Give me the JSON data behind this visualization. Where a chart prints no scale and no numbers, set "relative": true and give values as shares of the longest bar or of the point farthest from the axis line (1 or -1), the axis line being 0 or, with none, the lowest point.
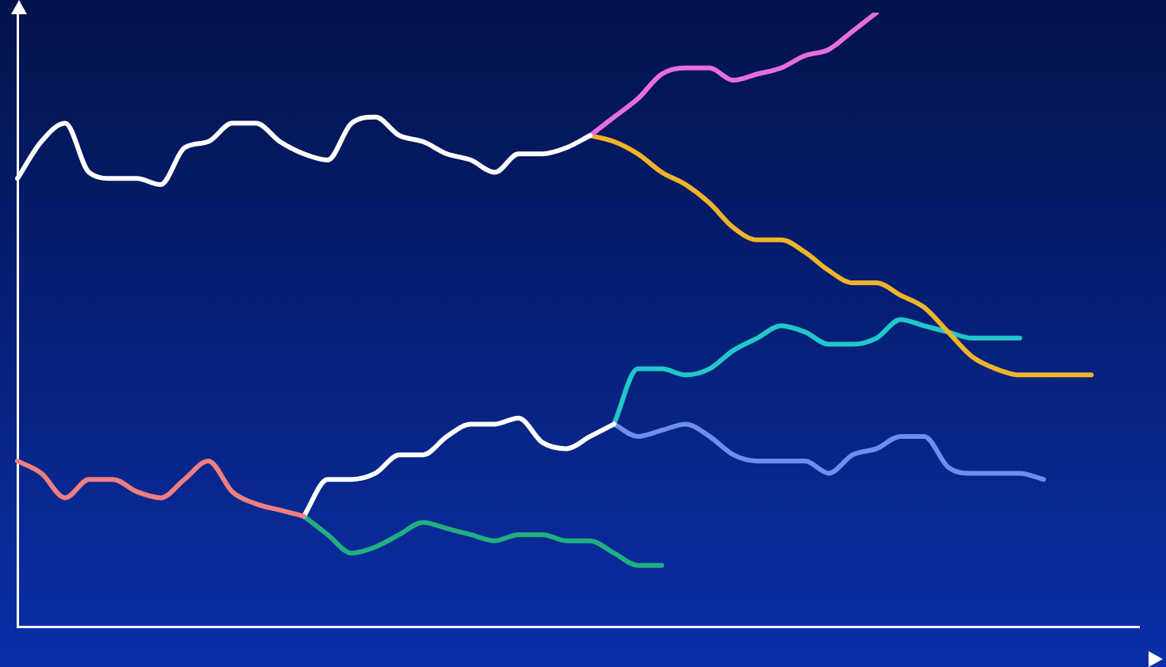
{
  "chart_data": {
    "type": "line",
    "relative": true,
    "grid": false,
    "legend": false,
    "marker": "none",
    "line_style": "solid",
    "categories": [
      null,
      null,
      null,
      null,
      null,
      null,
      null,
      null,
      null,
      null,
      null,
      null,
      null,
      null,
      null,
      null,
      null,
      null,
      null,
      null,
      null,
      null,
      null,
      null,
      null,
      null,
      null,
      null,
      null,
      null,
      null,
      null,
      null,
      null,
      null,
      null,
      null,
      null,
      null,
      null,
      null,
      null,
      null,
      null,
      null,
      null,
      null,
      null
    ],
    "series": [
      {
        "color": "#ffffff",
        "values": [
          0.73,
          0.79,
          0.82,
          0.74,
          0.73,
          0.73,
          0.72,
          0.78,
          0.79,
          0.82,
          0.82,
          0.79,
          0.77,
          0.76,
          0.82,
          0.83,
          0.8,
          0.79,
          0.77,
          0.76,
          0.74,
          0.77,
          0.77,
          0.78,
          0.8,
          null,
          null,
          null,
          null,
          null,
          null,
          null,
          null,
          null,
          null,
          null,
          null,
          null,
          null,
          null,
          null,
          null,
          null,
          null,
          null,
          null,
          null,
          null
        ]
      },
      {
        "color": "#e86ee0",
        "values": [
          null,
          null,
          null,
          null,
          null,
          null,
          null,
          null,
          null,
          null,
          null,
          null,
          null,
          null,
          null,
          null,
          null,
          null,
          null,
          null,
          null,
          null,
          null,
          null,
          0.8,
          0.83,
          0.86,
          0.9,
          0.91,
          0.91,
          0.89,
          0.9,
          0.91,
          0.93,
          0.94,
          0.97,
          1,
          null,
          null,
          null,
          null,
          null,
          null,
          null,
          null,
          null,
          null,
          null
        ]
      },
      {
        "color": "#f0b429",
        "values": [
          null,
          null,
          null,
          null,
          null,
          null,
          null,
          null,
          null,
          null,
          null,
          null,
          null,
          null,
          null,
          null,
          null,
          null,
          null,
          null,
          null,
          null,
          null,
          null,
          0.8,
          0.79,
          0.77,
          0.74,
          0.72,
          0.69,
          0.65,
          0.63,
          0.63,
          0.61,
          0.58,
          0.56,
          0.56,
          0.54,
          0.52,
          0.48,
          0.44,
          0.42,
          0.41,
          0.41,
          0.41,
          0.41,
          null,
          null
        ]
      },
      {
        "color": "#f08080",
        "values": [
          0.27,
          0.25,
          0.21,
          0.24,
          0.24,
          0.22,
          0.21,
          0.24,
          0.27,
          0.22,
          0.2,
          0.19,
          0.18,
          null,
          null,
          null,
          null,
          null,
          null,
          null,
          null,
          null,
          null,
          null,
          null,
          null,
          null,
          null,
          null,
          null,
          null,
          null,
          null,
          null,
          null,
          null,
          null,
          null,
          null,
          null,
          null,
          null,
          null,
          null,
          null,
          null,
          null,
          null
        ]
      },
      {
        "color": "#ffffff",
        "values": [
          null,
          null,
          null,
          null,
          null,
          null,
          null,
          null,
          null,
          null,
          null,
          null,
          0.18,
          0.24,
          0.24,
          0.25,
          0.28,
          0.28,
          0.31,
          0.33,
          0.33,
          0.34,
          0.3,
          0.29,
          0.31,
          0.33,
          null,
          null,
          null,
          null,
          null,
          null,
          null,
          null,
          null,
          null,
          null,
          null,
          null,
          null,
          null,
          null,
          null,
          null,
          null,
          null,
          null,
          null
        ]
      },
      {
        "color": "#20b080",
        "values": [
          null,
          null,
          null,
          null,
          null,
          null,
          null,
          null,
          null,
          null,
          null,
          null,
          0.18,
          0.15,
          0.12,
          0.13,
          0.15,
          0.17,
          0.16,
          0.15,
          0.14,
          0.15,
          0.15,
          0.14,
          0.14,
          0.12,
          0.1,
          0.1,
          null,
          null,
          null,
          null,
          null,
          null,
          null,
          null,
          null,
          null,
          null,
          null,
          null,
          null,
          null,
          null,
          null,
          null,
          null,
          null
        ]
      },
      {
        "color": "#20c8c8",
        "values": [
          null,
          null,
          null,
          null,
          null,
          null,
          null,
          null,
          null,
          null,
          null,
          null,
          null,
          null,
          null,
          null,
          null,
          null,
          null,
          null,
          null,
          null,
          null,
          null,
          null,
          0.33,
          0.42,
          0.42,
          0.41,
          0.42,
          0.45,
          0.47,
          0.49,
          0.48,
          0.46,
          0.46,
          0.47,
          0.5,
          0.49,
          0.48,
          0.47,
          0.47,
          0.47,
          null,
          null,
          null,
          null,
          null
        ]
      },
      {
        "color": "#6e8ef0",
        "values": [
          null,
          null,
          null,
          null,
          null,
          null,
          null,
          null,
          null,
          null,
          null,
          null,
          null,
          null,
          null,
          null,
          null,
          null,
          null,
          null,
          null,
          null,
          null,
          null,
          null,
          0.33,
          0.31,
          0.32,
          0.33,
          0.31,
          0.28,
          0.27,
          0.27,
          0.27,
          0.25,
          0.28,
          0.29,
          0.31,
          0.31,
          0.26,
          0.25,
          0.25,
          0.25,
          0.24,
          null,
          null,
          null,
          null
        ]
      }
    ]
  }
}
